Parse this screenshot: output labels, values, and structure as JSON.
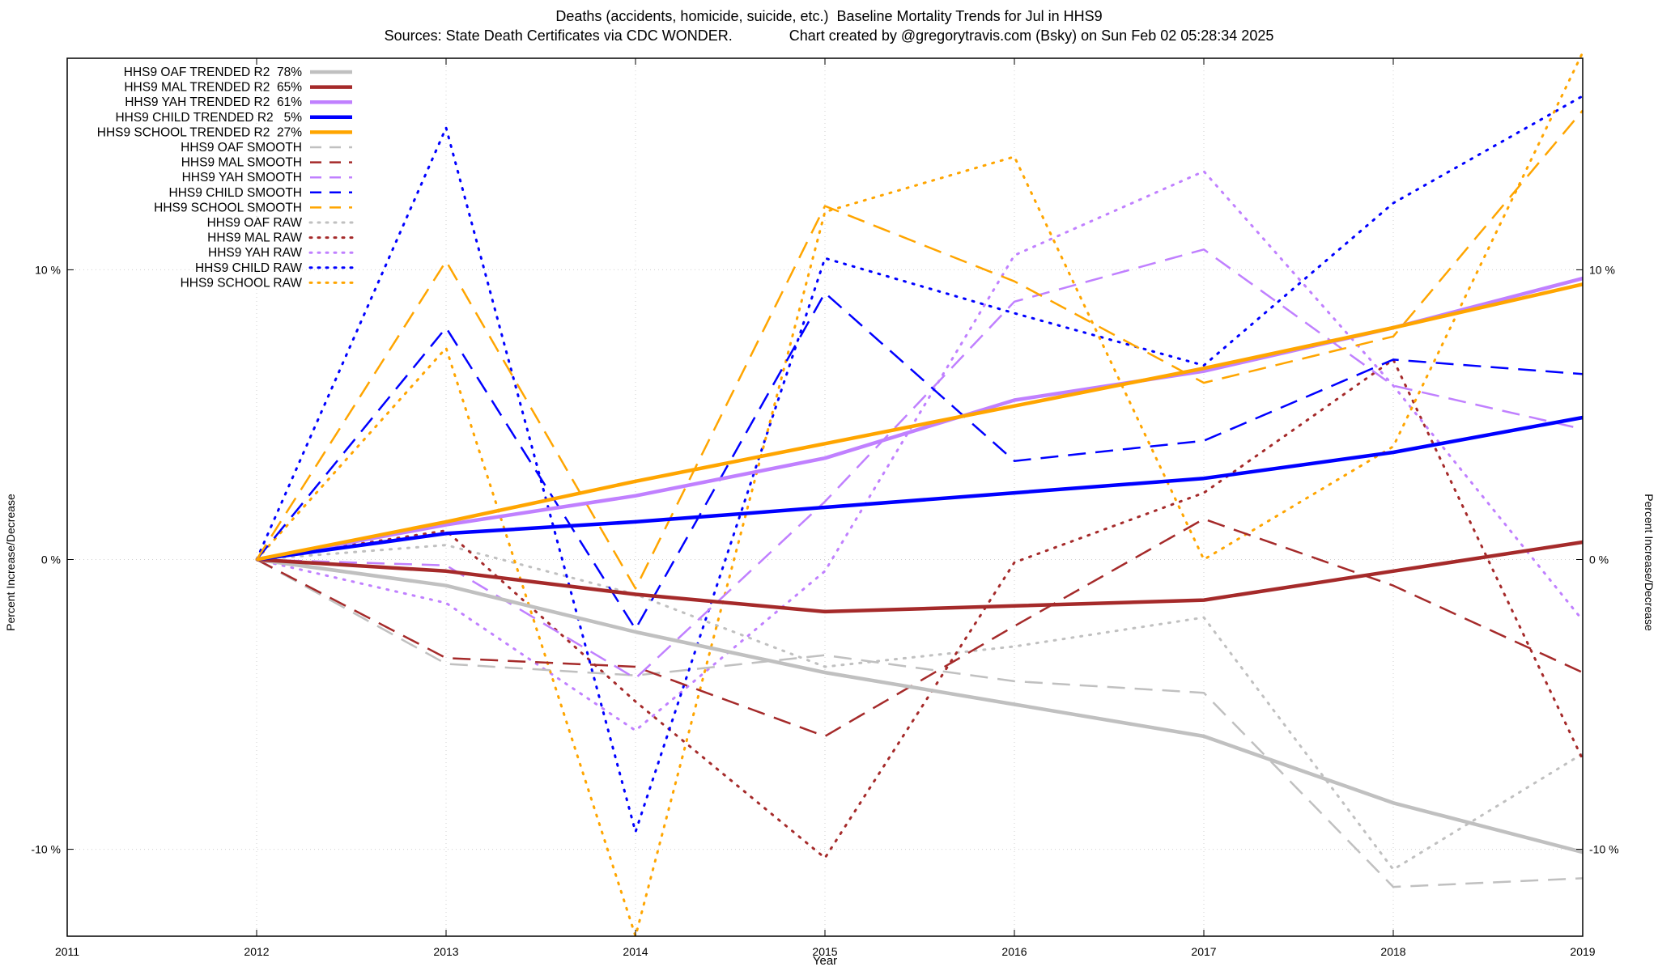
{
  "title": "Deaths (accidents, homicide, suicide, etc.)  Baseline Mortality Trends for Jul in HHS9",
  "subtitle": "Sources: State Death Certificates via CDC WONDER.              Chart created by @gregorytravis.com (Bsky) on Sun Feb 02 05:28:34 2025",
  "chart_data": {
    "type": "line",
    "xlabel": "Year",
    "ylabel": "Percent Increase/Decrease",
    "y2label": "Percent Increase/Decrease",
    "xlim": [
      2011,
      2019
    ],
    "ylim": [
      -13,
      17.3
    ],
    "x_ticks": [
      "2011",
      "2012",
      "2013",
      "2014",
      "2015",
      "2016",
      "2017",
      "2018",
      "2019"
    ],
    "y_ticks": [
      {
        "value": -10,
        "label": "-10 %"
      },
      {
        "value": 0,
        "label": "0 %"
      },
      {
        "value": 10,
        "label": "10 %"
      }
    ],
    "grid": true,
    "legend_position": "top-left",
    "x": [
      2012,
      2013,
      2014,
      2015,
      2016,
      2017,
      2018,
      2019
    ],
    "series": [
      {
        "name": "HHS9 OAF TRENDED R2  78%",
        "color": "#c0c0c0",
        "style": "trend",
        "values": [
          0,
          -0.9,
          -2.5,
          -3.9,
          -5.0,
          -6.1,
          -8.4,
          -10.1
        ]
      },
      {
        "name": "HHS9 MAL TRENDED R2  65%",
        "color": "#a52a2a",
        "style": "trend",
        "values": [
          0,
          -0.4,
          -1.2,
          -1.8,
          -1.6,
          -1.4,
          -0.4,
          0.6
        ]
      },
      {
        "name": "HHS9 YAH TRENDED R2  61%",
        "color": "#c080ff",
        "style": "trend",
        "values": [
          0,
          1.2,
          2.2,
          3.5,
          5.5,
          6.5,
          8.0,
          9.7
        ]
      },
      {
        "name": "HHS9 CHILD TRENDED R2   5%",
        "color": "#0000ff",
        "style": "trend",
        "values": [
          0,
          0.9,
          1.3,
          1.8,
          2.3,
          2.8,
          3.7,
          4.9
        ]
      },
      {
        "name": "HHS9 SCHOOL TRENDED R2  27%",
        "color": "#ffa500",
        "style": "trend",
        "values": [
          0,
          1.3,
          2.7,
          4.0,
          5.3,
          6.6,
          8.0,
          9.5
        ]
      },
      {
        "name": "HHS9 OAF SMOOTH",
        "color": "#c0c0c0",
        "style": "smooth",
        "values": [
          0,
          -3.6,
          -4.0,
          -3.3,
          -4.2,
          -4.6,
          -11.3,
          -11.0
        ]
      },
      {
        "name": "HHS9 MAL SMOOTH",
        "color": "#a52a2a",
        "style": "smooth",
        "values": [
          0,
          -3.4,
          -3.7,
          -6.1,
          -2.3,
          1.4,
          -0.9,
          -3.9
        ]
      },
      {
        "name": "HHS9 YAH SMOOTH",
        "color": "#c080ff",
        "style": "smooth",
        "values": [
          0,
          -0.2,
          -4.1,
          2.0,
          8.9,
          10.7,
          6.0,
          4.5
        ]
      },
      {
        "name": "HHS9 CHILD SMOOTH",
        "color": "#0000ff",
        "style": "smooth",
        "values": [
          0,
          8.0,
          -2.4,
          9.2,
          3.4,
          4.1,
          6.9,
          6.4
        ]
      },
      {
        "name": "HHS9 SCHOOL SMOOTH",
        "color": "#ffa500",
        "style": "smooth",
        "values": [
          0,
          10.3,
          -1.0,
          12.2,
          9.6,
          6.1,
          7.7,
          15.5
        ]
      },
      {
        "name": "HHS9 OAF RAW",
        "color": "#c0c0c0",
        "style": "raw",
        "values": [
          0,
          0.5,
          -1.2,
          -3.7,
          -3.0,
          -2.0,
          -10.7,
          -6.7
        ]
      },
      {
        "name": "HHS9 MAL RAW",
        "color": "#a52a2a",
        "style": "raw",
        "values": [
          0,
          1.0,
          -4.9,
          -10.3,
          -0.1,
          2.3,
          6.9,
          -6.9
        ]
      },
      {
        "name": "HHS9 YAH RAW",
        "color": "#c080ff",
        "style": "raw",
        "values": [
          0,
          -1.5,
          -5.9,
          -0.4,
          10.5,
          13.4,
          6.0,
          -2.1
        ]
      },
      {
        "name": "HHS9 CHILD RAW",
        "color": "#0000ff",
        "style": "raw",
        "values": [
          0,
          14.9,
          -9.4,
          10.4,
          8.5,
          6.7,
          12.3,
          16.0
        ]
      },
      {
        "name": "HHS9 SCHOOL RAW",
        "color": "#ffa500",
        "style": "raw",
        "values": [
          0,
          7.3,
          -13.0,
          12.0,
          13.9,
          0.0,
          3.9,
          17.5
        ]
      }
    ]
  }
}
